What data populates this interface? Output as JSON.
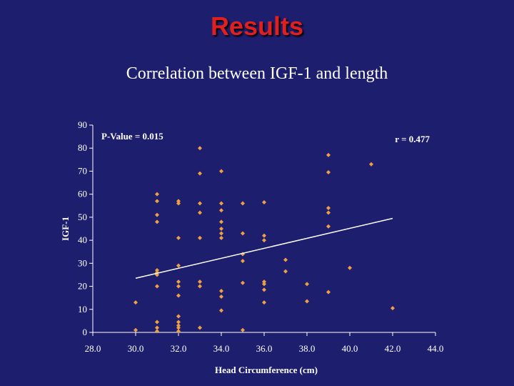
{
  "slide": {
    "title": "Results"
  },
  "chart_data": {
    "type": "scatter",
    "title": "Correlation between IGF-1 and length",
    "xlabel": "Head Circumference (cm)",
    "ylabel": "IGF-1",
    "xlim": [
      28.0,
      44.0
    ],
    "ylim": [
      0,
      90
    ],
    "x_ticks": [
      "28.0",
      "30.0",
      "32.0",
      "34.0",
      "36.0",
      "38.0",
      "40.0",
      "42.0",
      "44.0"
    ],
    "y_ticks": [
      "0",
      "10",
      "20",
      "30",
      "40",
      "50",
      "60",
      "70",
      "80",
      "90"
    ],
    "grid": false,
    "point_color": "#f0a040",
    "trendline": {
      "x": [
        30.0,
        42.0
      ],
      "y": [
        23.5,
        49.5
      ],
      "color": "#ffffff"
    },
    "annotations": {
      "p_value": "P-Value = 0.015",
      "r": "r = 0.477"
    },
    "points": [
      [
        30.0,
        13.0
      ],
      [
        30.0,
        1.0
      ],
      [
        31.0,
        60.0
      ],
      [
        31.0,
        57.0
      ],
      [
        31.0,
        51.0
      ],
      [
        31.0,
        48.0
      ],
      [
        31.0,
        27.0
      ],
      [
        31.0,
        26.0
      ],
      [
        31.0,
        25.0
      ],
      [
        31.0,
        20.0
      ],
      [
        31.0,
        4.5
      ],
      [
        31.0,
        2.0
      ],
      [
        31.0,
        0.5
      ],
      [
        32.0,
        57.0
      ],
      [
        32.0,
        56.0
      ],
      [
        32.0,
        41.0
      ],
      [
        32.0,
        29.0
      ],
      [
        32.0,
        22.0
      ],
      [
        32.0,
        20.0
      ],
      [
        32.0,
        16.0
      ],
      [
        32.0,
        7.0
      ],
      [
        32.0,
        4.5
      ],
      [
        32.0,
        3.0
      ],
      [
        32.0,
        2.0
      ],
      [
        32.0,
        0.5
      ],
      [
        33.0,
        80.0
      ],
      [
        33.0,
        69.0
      ],
      [
        33.0,
        56.0
      ],
      [
        33.0,
        52.0
      ],
      [
        33.0,
        41.0
      ],
      [
        33.0,
        22.0
      ],
      [
        33.0,
        20.0
      ],
      [
        33.0,
        2.0
      ],
      [
        34.0,
        70.0
      ],
      [
        34.0,
        56.0
      ],
      [
        34.0,
        53.0
      ],
      [
        34.0,
        48.0
      ],
      [
        34.0,
        45.0
      ],
      [
        34.0,
        43.0
      ],
      [
        34.0,
        41.0
      ],
      [
        34.0,
        18.0
      ],
      [
        34.0,
        15.5
      ],
      [
        34.0,
        9.5
      ],
      [
        35.0,
        56.0
      ],
      [
        35.0,
        43.0
      ],
      [
        35.0,
        34.0
      ],
      [
        35.0,
        31.0
      ],
      [
        35.0,
        21.5
      ],
      [
        35.0,
        1.0
      ],
      [
        36.0,
        56.5
      ],
      [
        36.0,
        42.0
      ],
      [
        36.0,
        40.0
      ],
      [
        36.0,
        22.0
      ],
      [
        36.0,
        21.0
      ],
      [
        36.0,
        18.5
      ],
      [
        36.0,
        13.0
      ],
      [
        37.0,
        31.5
      ],
      [
        37.0,
        26.5
      ],
      [
        38.0,
        21.0
      ],
      [
        38.0,
        13.5
      ],
      [
        39.0,
        77.0
      ],
      [
        39.0,
        69.5
      ],
      [
        39.0,
        54.0
      ],
      [
        39.0,
        52.0
      ],
      [
        39.0,
        46.0
      ],
      [
        39.0,
        17.5
      ],
      [
        40.0,
        28.0
      ],
      [
        41.0,
        73.0
      ],
      [
        42.0,
        10.5
      ]
    ]
  }
}
